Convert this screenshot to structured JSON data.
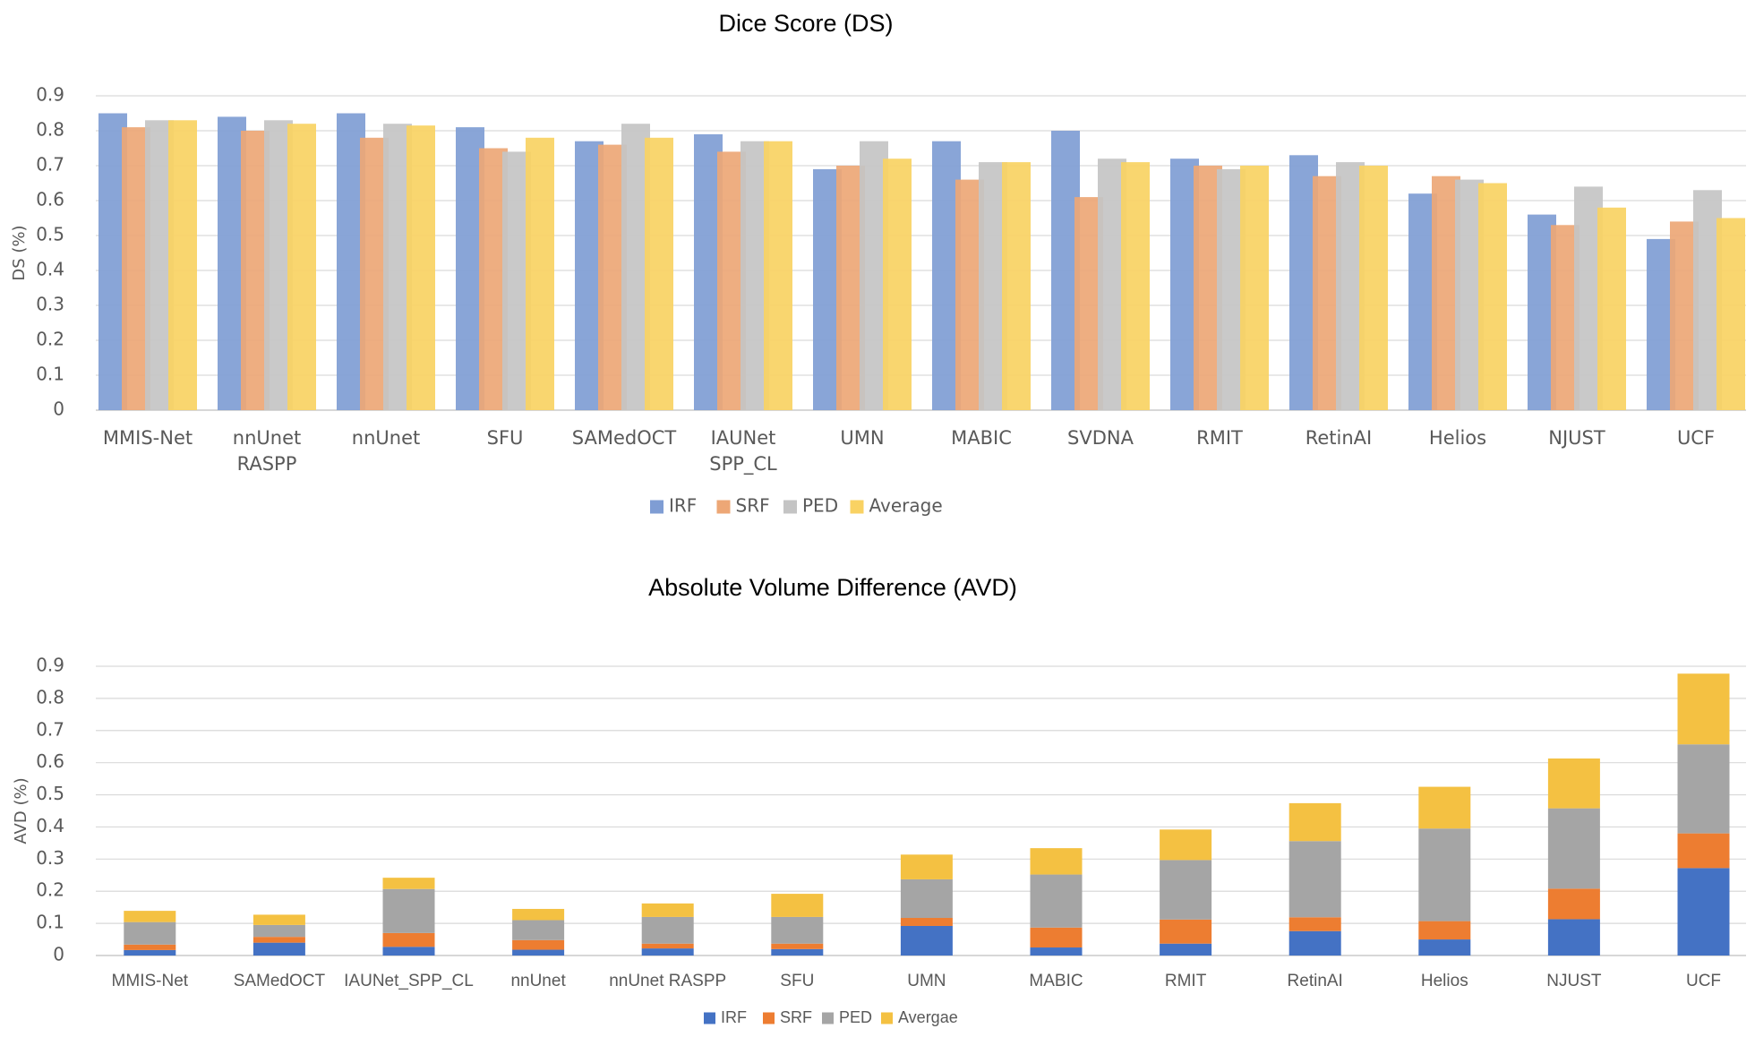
{
  "chart_data": [
    {
      "type": "bar",
      "title": "Dice Score (DS)",
      "xlabel": "",
      "ylabel": "DS (%)",
      "ylim": [
        0,
        0.9
      ],
      "yticks": [
        "0",
        "0.1",
        "0.2",
        "0.3",
        "0.4",
        "0.5",
        "0.6",
        "0.7",
        "0.8",
        "0.9"
      ],
      "grid": true,
      "legend_position": "bottom",
      "categories": [
        [
          "MMIS-Net"
        ],
        [
          "nnUnet",
          "RASPP"
        ],
        [
          "nnUnet"
        ],
        [
          "SFU"
        ],
        [
          "SAMedOCT"
        ],
        [
          "IAUNet",
          "SPP_CL"
        ],
        [
          "UMN"
        ],
        [
          "MABIC"
        ],
        [
          "SVDNA"
        ],
        [
          "RMIT"
        ],
        [
          "RetinAI"
        ],
        [
          "Helios"
        ],
        [
          "NJUST"
        ],
        [
          "UCF"
        ]
      ],
      "series": [
        {
          "name": "IRF",
          "color": "#7f9dd4",
          "values": [
            0.85,
            0.84,
            0.85,
            0.81,
            0.77,
            0.79,
            0.69,
            0.77,
            0.8,
            0.72,
            0.73,
            0.62,
            0.56,
            0.49
          ]
        },
        {
          "name": "SRF",
          "color": "#eda776",
          "values": [
            0.81,
            0.8,
            0.78,
            0.75,
            0.76,
            0.74,
            0.7,
            0.66,
            0.61,
            0.7,
            0.67,
            0.67,
            0.53,
            0.54
          ]
        },
        {
          "name": "PED",
          "color": "#c4c4c4",
          "values": [
            0.83,
            0.83,
            0.82,
            0.74,
            0.82,
            0.77,
            0.77,
            0.71,
            0.72,
            0.69,
            0.71,
            0.66,
            0.64,
            0.63
          ]
        },
        {
          "name": "Average",
          "color": "#f9d263",
          "values": [
            0.83,
            0.82,
            0.815,
            0.78,
            0.78,
            0.77,
            0.72,
            0.71,
            0.71,
            0.7,
            0.7,
            0.65,
            0.58,
            0.55
          ]
        }
      ]
    },
    {
      "type": "bar",
      "stacked": true,
      "title": "Absolute Volume Difference (AVD)",
      "xlabel": "",
      "ylabel": "AVD (%)",
      "ylim": [
        0,
        0.9
      ],
      "yticks": [
        "0",
        "0.1",
        "0.2",
        "0.3",
        "0.4",
        "0.5",
        "0.6",
        "0.7",
        "0.8",
        "0.9"
      ],
      "grid": true,
      "legend_position": "bottom",
      "categories": [
        [
          "MMIS-Net"
        ],
        [
          "SAMedOCT"
        ],
        [
          "IAUNet_SPP_CL"
        ],
        [
          "nnUnet"
        ],
        [
          "nnUnet RASPP"
        ],
        [
          "SFU"
        ],
        [
          "UMN"
        ],
        [
          "MABIC"
        ],
        [
          "RMIT"
        ],
        [
          "RetinAI"
        ],
        [
          "Helios"
        ],
        [
          "NJUST"
        ],
        [
          "UCF"
        ]
      ],
      "series": [
        {
          "name": "IRF",
          "color": "#4472c4",
          "values": [
            0.017,
            0.04,
            0.027,
            0.018,
            0.022,
            0.02,
            0.092,
            0.025,
            0.037,
            0.076,
            0.05,
            0.113,
            0.272
          ]
        },
        {
          "name": "SRF",
          "color": "#ed7d31",
          "values": [
            0.017,
            0.018,
            0.043,
            0.03,
            0.015,
            0.017,
            0.025,
            0.062,
            0.075,
            0.043,
            0.057,
            0.095,
            0.108
          ]
        },
        {
          "name": "PED",
          "color": "#a5a5a5",
          "values": [
            0.07,
            0.037,
            0.137,
            0.062,
            0.083,
            0.083,
            0.12,
            0.165,
            0.185,
            0.237,
            0.288,
            0.25,
            0.277
          ]
        },
        {
          "name": "Avergae",
          "color": "#f4c142",
          "values": [
            0.035,
            0.032,
            0.035,
            0.035,
            0.042,
            0.072,
            0.077,
            0.082,
            0.095,
            0.118,
            0.13,
            0.155,
            0.22
          ]
        }
      ]
    }
  ]
}
